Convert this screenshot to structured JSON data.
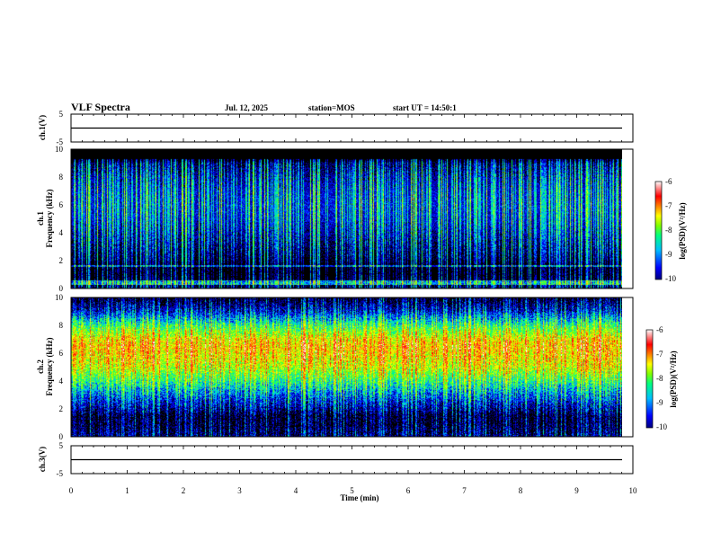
{
  "header": {
    "title": "VLF Spectra",
    "date": "Jul. 12, 2025",
    "station": "station=MOS",
    "start": "start UT = 14:50:1"
  },
  "chart_data": [
    {
      "type": "line",
      "name": "ch1-waveform",
      "ylabel": "ch.1(V)",
      "xlim": [
        0,
        10
      ],
      "ylim": [
        -5,
        5
      ],
      "y_ticks": [
        "5",
        "-5"
      ],
      "baseline": 0,
      "x_ticks": [
        "0",
        "1",
        "2",
        "3",
        "4",
        "5",
        "6",
        "7",
        "8",
        "9",
        "10"
      ]
    },
    {
      "type": "heatmap",
      "name": "ch1-spectrogram",
      "ylabel": "ch.1 Frequency (kHz)",
      "ylabel_lines": [
        "ch.1",
        "Frequency (kHz)"
      ],
      "xlim": [
        0,
        9.8
      ],
      "ylim": [
        0,
        10
      ],
      "y_ticks": [
        "0",
        "2",
        "4",
        "6",
        "8",
        "10"
      ],
      "colorbar": {
        "label": "log(PSD)(V²/Hz)",
        "range": [
          -10,
          -6
        ],
        "ticks": [
          "-6",
          "-7",
          "-8",
          "-9",
          "-10"
        ],
        "colors": [
          "#000080",
          "#0000ff",
          "#00bfff",
          "#00ff80",
          "#80ff00",
          "#ffff00",
          "#ff8000",
          "#ff0000",
          "#ffffff"
        ]
      },
      "profile": {
        "freq_kHz": [
          0,
          0.5,
          1,
          1.5,
          2,
          3,
          4,
          5,
          6,
          7,
          8,
          9,
          9.3,
          10
        ],
        "log_psd": [
          -9.4,
          -9.8,
          -10,
          -10,
          -9.6,
          -9.3,
          -9.0,
          -8.8,
          -8.7,
          -8.8,
          -9.0,
          -9.4,
          -10,
          -10
        ]
      }
    },
    {
      "type": "heatmap",
      "name": "ch2-spectrogram",
      "ylabel": "ch.2 Frequency (kHz)",
      "ylabel_lines": [
        "ch.2",
        "Frequency (kHz)"
      ],
      "xlim": [
        0,
        9.8
      ],
      "ylim": [
        0,
        10
      ],
      "y_ticks": [
        "0",
        "2",
        "4",
        "6",
        "8",
        "10"
      ],
      "colorbar": {
        "label": "log(PSD)(V²/Hz)",
        "range": [
          -10,
          -6
        ],
        "ticks": [
          "-6",
          "-7",
          "-8",
          "-9",
          "-10"
        ],
        "colors": [
          "#000080",
          "#0000ff",
          "#00bfff",
          "#00ff80",
          "#80ff00",
          "#ffff00",
          "#ff8000",
          "#ff0000",
          "#ffffff"
        ]
      },
      "profile": {
        "freq_kHz": [
          0,
          0.5,
          1,
          1.5,
          2,
          3,
          4,
          5,
          6,
          6.5,
          7,
          8,
          9,
          10
        ],
        "log_psd": [
          -9.6,
          -9.8,
          -9.9,
          -9.9,
          -9.5,
          -8.8,
          -8.0,
          -7.3,
          -7.0,
          -6.9,
          -7.1,
          -8.0,
          -9.2,
          -10
        ]
      }
    },
    {
      "type": "line",
      "name": "ch3-waveform",
      "ylabel": "ch.3(V)",
      "xlim": [
        0,
        10
      ],
      "ylim": [
        -5,
        5
      ],
      "y_ticks": [
        "5",
        "-5"
      ],
      "baseline": 0,
      "xlabel": "Time (min)",
      "x_ticks": [
        "0",
        "1",
        "2",
        "3",
        "4",
        "5",
        "6",
        "7",
        "8",
        "9",
        "10"
      ]
    }
  ]
}
